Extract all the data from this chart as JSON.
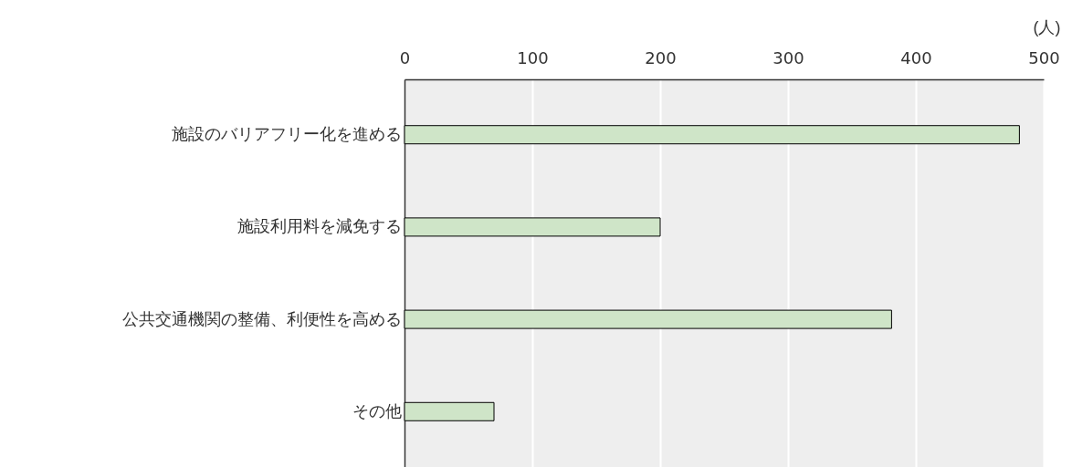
{
  "chart_data": {
    "type": "bar",
    "orientation": "horizontal",
    "xlabel": "(人)",
    "categories": [
      "施設のバリアフリー化を進める",
      "施設利用料を減免する",
      "公共交通機関の整備、利便性を高める",
      "その他"
    ],
    "values": [
      481,
      200,
      381,
      70
    ],
    "color": "#cfe5c8",
    "xlim": [
      0,
      500
    ],
    "xticks": [
      0,
      100,
      200,
      300,
      400,
      500
    ],
    "grid": "x"
  }
}
